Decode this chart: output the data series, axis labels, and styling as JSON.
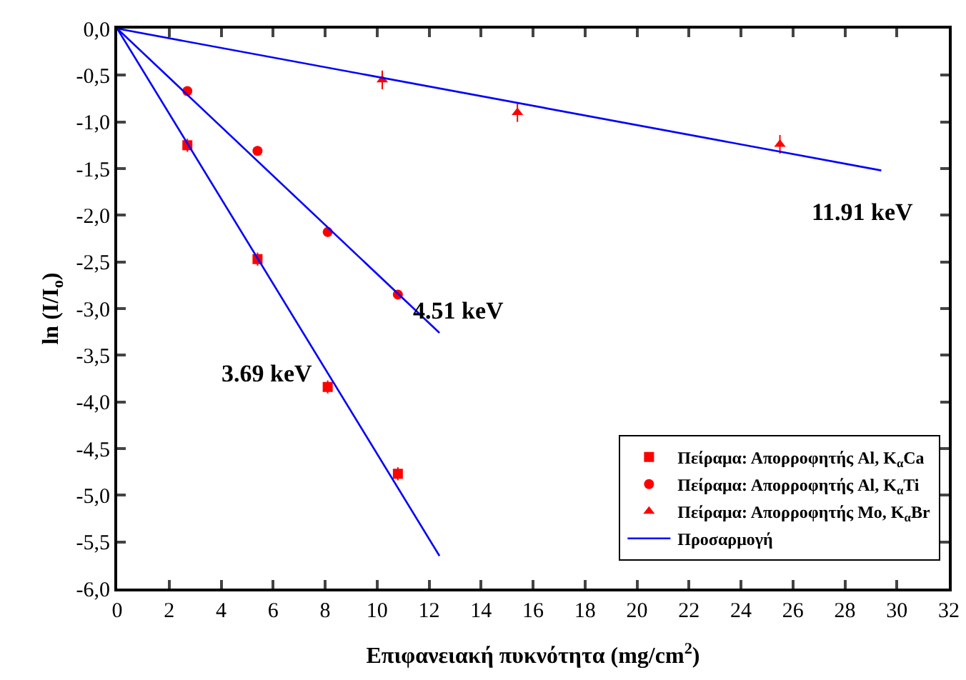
{
  "chart_data": {
    "type": "scatter",
    "xlabel": "Επιφανειακή πυκνότητα (mg/cm$^{2}$)",
    "ylabel": "ln (I/I$_{o}$)",
    "xlim": [
      0,
      32
    ],
    "xticks": [
      0,
      2,
      4,
      6,
      8,
      10,
      12,
      14,
      16,
      18,
      20,
      22,
      24,
      26,
      28,
      30,
      32
    ],
    "ylim": [
      -6,
      0
    ],
    "yticks": [
      {
        "value": 0,
        "label": "0,0"
      },
      {
        "value": -0.5,
        "label": "-0,5"
      },
      {
        "value": -1,
        "label": "-1,0"
      },
      {
        "value": -1.5,
        "label": "-1,5"
      },
      {
        "value": -2,
        "label": "-2,0"
      },
      {
        "value": -2.5,
        "label": "-2,5"
      },
      {
        "value": -3,
        "label": "-3,0"
      },
      {
        "value": -3.5,
        "label": "-3,5"
      },
      {
        "value": -4,
        "label": "-4,0"
      },
      {
        "value": -4.5,
        "label": "-4,5"
      },
      {
        "value": -5,
        "label": "-5,0"
      },
      {
        "value": -5.5,
        "label": "-5,5"
      },
      {
        "value": -6,
        "label": "-6,0"
      }
    ],
    "grid": false,
    "legend": "bottom right",
    "series": [
      {
        "name": "Πείραμα: Απορροφητής Al, K$_{α}$Ca",
        "color": "#ff0000",
        "marker": "square",
        "x": [
          2.7,
          5.4,
          8.1,
          10.8
        ],
        "values": [
          -1.25,
          -2.47,
          -3.84,
          -4.77
        ],
        "errors": [
          0.07,
          0.07,
          0.07,
          0.07
        ]
      },
      {
        "name": "Πείραμα: Απορροφητής Al, K$_{α}$Ti",
        "color": "#ff0000",
        "marker": "circle",
        "x": [
          2.7,
          5.4,
          8.1,
          10.8
        ],
        "values": [
          -0.67,
          -1.31,
          -2.18,
          -2.85
        ],
        "errors": [
          0.05,
          0.05,
          0.05,
          0.05
        ]
      },
      {
        "name": "Πείραμα: Απορροφητής Mo, K$_{α}$Br",
        "color": "#ff0000",
        "marker": "triangle",
        "x": [
          10.2,
          15.4,
          25.5
        ],
        "values": [
          -0.55,
          -0.9,
          -1.24
        ],
        "errors": [
          0.1,
          0.1,
          0.1
        ]
      },
      {
        "name": "Προσαρμογή",
        "type": "line",
        "color": "#0000ff",
        "marker": "none",
        "x": [
          0,
          12.4
        ],
        "values": [
          0,
          -5.65
        ]
      },
      {
        "type": "line",
        "color": "#0000ff",
        "marker": "none",
        "x": [
          0,
          12.4
        ],
        "values": [
          0,
          -3.26
        ]
      },
      {
        "type": "line",
        "color": "#0000ff",
        "marker": "none",
        "x": [
          0,
          29.4
        ],
        "values": [
          0,
          -1.52
        ]
      }
    ],
    "annotations": [
      "3.69 keV",
      "4.51 keV",
      "11.91 keV"
    ]
  }
}
